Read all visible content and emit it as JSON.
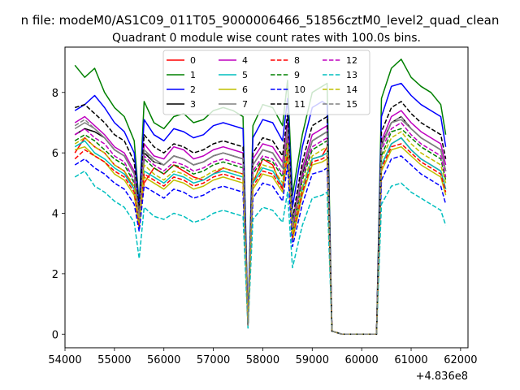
{
  "chart_data": {
    "type": "line",
    "suptitle": "n file: modeM0/AS1C09_011T05_9000006466_51856cztM0_level2_quad_clean",
    "title": "Quadrant 0 module wise count rates with 100.0s bins.",
    "xlabel": "",
    "ylabel": "",
    "x_offset_label": "+4.836e8",
    "xlim": [
      54000,
      62150
    ],
    "ylim": [
      -0.45,
      9.5
    ],
    "x_ticks": [
      54000,
      55000,
      56000,
      57000,
      58000,
      59000,
      60000,
      61000,
      62000
    ],
    "x_tick_labels": [
      "54000",
      "55000",
      "56000",
      "57000",
      "58000",
      "59000",
      "60000",
      "61000",
      "62000"
    ],
    "y_ticks": [
      0,
      2,
      4,
      6,
      8
    ],
    "y_tick_labels": [
      "0",
      "2",
      "4",
      "6",
      "8"
    ],
    "grid": false,
    "legend_position": "upper center",
    "legend_columns": 4,
    "x": [
      54200,
      54400,
      54600,
      54800,
      55000,
      55200,
      55400,
      55500,
      55600,
      55800,
      56000,
      56200,
      56400,
      56600,
      56800,
      57000,
      57200,
      57400,
      57600,
      57700,
      57800,
      58000,
      58200,
      58400,
      58500,
      58600,
      58800,
      59000,
      59200,
      59300,
      59400,
      59600,
      60000,
      60300,
      60400,
      60600,
      60800,
      61000,
      61200,
      61400,
      61600,
      61700
    ],
    "series": [
      {
        "name": "0",
        "color": "#ff0000",
        "dash": "solid",
        "values": [
          6.0,
          6.5,
          6.2,
          6.0,
          5.6,
          5.4,
          4.8,
          3.8,
          5.0,
          5.5,
          5.3,
          5.6,
          5.4,
          5.2,
          5.1,
          5.3,
          5.5,
          5.4,
          5.3,
          0.3,
          5.0,
          5.8,
          5.6,
          4.8,
          6.8,
          3.4,
          4.8,
          5.8,
          5.9,
          6.2,
          0.1,
          0.0,
          0.0,
          0.0,
          5.6,
          6.3,
          6.5,
          6.1,
          5.8,
          5.6,
          5.4,
          4.8
        ]
      },
      {
        "name": "1",
        "color": "#008000",
        "dash": "solid",
        "values": [
          8.9,
          8.5,
          8.8,
          8.0,
          7.5,
          7.2,
          6.4,
          4.3,
          7.7,
          7.0,
          6.8,
          7.2,
          7.3,
          7.0,
          7.1,
          7.4,
          7.5,
          7.4,
          7.2,
          0.4,
          6.9,
          7.6,
          7.5,
          6.9,
          8.4,
          4.6,
          6.6,
          8.0,
          8.2,
          8.3,
          0.1,
          0.0,
          0.0,
          0.0,
          7.8,
          8.8,
          9.1,
          8.5,
          8.2,
          8.0,
          7.6,
          6.6
        ]
      },
      {
        "name": "2",
        "color": "#0000ff",
        "dash": "solid",
        "values": [
          7.4,
          7.6,
          7.9,
          7.5,
          7.0,
          6.7,
          6.0,
          4.2,
          7.1,
          6.6,
          6.4,
          6.8,
          6.7,
          6.5,
          6.6,
          6.9,
          7.0,
          6.9,
          6.8,
          0.4,
          6.5,
          7.1,
          7.0,
          6.4,
          7.8,
          4.2,
          6.2,
          7.5,
          7.7,
          7.6,
          0.1,
          0.0,
          0.0,
          0.0,
          7.2,
          8.2,
          8.3,
          7.9,
          7.6,
          7.4,
          7.2,
          6.2
        ]
      },
      {
        "name": "3",
        "color": "#000000",
        "dash": "solid",
        "values": [
          6.6,
          6.8,
          6.7,
          6.5,
          6.1,
          5.9,
          5.3,
          3.8,
          6.0,
          5.7,
          5.6,
          5.9,
          5.8,
          5.6,
          5.7,
          5.9,
          6.0,
          5.9,
          5.8,
          0.3,
          5.6,
          6.1,
          6.0,
          5.5,
          6.8,
          3.6,
          5.3,
          6.4,
          6.6,
          6.7,
          0.1,
          0.0,
          0.0,
          0.0,
          6.3,
          7.0,
          7.2,
          6.8,
          6.5,
          6.3,
          6.1,
          5.4
        ]
      },
      {
        "name": "4",
        "color": "#bf00bf",
        "dash": "solid",
        "values": [
          7.0,
          7.2,
          6.9,
          6.6,
          6.2,
          6.0,
          5.4,
          3.9,
          6.3,
          5.9,
          5.8,
          6.2,
          6.1,
          5.8,
          5.9,
          6.1,
          6.2,
          6.1,
          6.0,
          0.3,
          5.8,
          6.3,
          6.2,
          5.7,
          7.0,
          3.7,
          5.5,
          6.6,
          6.8,
          6.9,
          0.1,
          0.0,
          0.0,
          0.0,
          6.4,
          7.2,
          7.4,
          7.0,
          6.7,
          6.5,
          6.3,
          5.6
        ]
      },
      {
        "name": "5",
        "color": "#00bfbf",
        "dash": "solid",
        "values": [
          6.2,
          6.4,
          6.0,
          5.8,
          5.5,
          5.3,
          4.8,
          3.6,
          5.4,
          5.2,
          5.0,
          5.3,
          5.2,
          5.0,
          5.1,
          5.3,
          5.4,
          5.3,
          5.2,
          0.3,
          5.0,
          5.5,
          5.4,
          4.9,
          6.1,
          3.2,
          4.8,
          5.8,
          5.9,
          6.0,
          0.1,
          0.0,
          0.0,
          0.0,
          5.6,
          6.3,
          6.5,
          6.1,
          5.8,
          5.6,
          5.4,
          4.8
        ]
      },
      {
        "name": "6",
        "color": "#bfbf00",
        "dash": "solid",
        "values": [
          6.1,
          6.2,
          5.9,
          5.7,
          5.3,
          5.1,
          4.6,
          3.5,
          5.2,
          5.0,
          4.8,
          5.1,
          5.0,
          4.8,
          4.9,
          5.1,
          5.2,
          5.1,
          5.0,
          0.3,
          4.8,
          5.3,
          5.2,
          4.7,
          5.9,
          3.1,
          4.6,
          5.6,
          5.7,
          5.8,
          0.1,
          0.0,
          0.0,
          0.0,
          5.4,
          6.1,
          6.2,
          5.9,
          5.6,
          5.4,
          5.2,
          4.6
        ]
      },
      {
        "name": "7",
        "color": "#808080",
        "dash": "solid",
        "values": [
          6.8,
          7.0,
          6.8,
          6.5,
          6.1,
          5.9,
          5.3,
          3.9,
          6.1,
          5.8,
          5.6,
          5.9,
          5.8,
          5.6,
          5.7,
          5.9,
          6.0,
          5.9,
          5.8,
          0.3,
          5.6,
          6.1,
          6.0,
          5.5,
          6.8,
          3.6,
          5.4,
          6.4,
          6.6,
          6.7,
          0.1,
          0.0,
          0.0,
          0.0,
          6.2,
          7.0,
          7.1,
          6.8,
          6.5,
          6.3,
          6.1,
          5.4
        ]
      },
      {
        "name": "8",
        "color": "#ff0000",
        "dash": "dashed",
        "values": [
          5.8,
          6.1,
          5.9,
          5.7,
          5.4,
          5.2,
          4.7,
          3.6,
          5.3,
          5.1,
          4.9,
          5.2,
          5.1,
          4.9,
          5.0,
          5.2,
          5.3,
          5.2,
          5.1,
          0.3,
          4.9,
          5.4,
          5.3,
          4.8,
          6.0,
          3.2,
          4.7,
          5.7,
          5.8,
          5.9,
          0.1,
          0.0,
          0.0,
          0.0,
          5.5,
          6.2,
          6.3,
          6.0,
          5.7,
          5.5,
          5.3,
          4.7
        ]
      },
      {
        "name": "9",
        "color": "#008000",
        "dash": "dashed",
        "values": [
          6.4,
          6.6,
          6.4,
          6.1,
          5.8,
          5.6,
          5.0,
          3.7,
          5.8,
          5.5,
          5.3,
          5.6,
          5.5,
          5.3,
          5.4,
          5.6,
          5.7,
          5.6,
          5.5,
          0.3,
          5.3,
          5.8,
          5.7,
          5.2,
          6.4,
          3.4,
          5.1,
          6.1,
          6.3,
          6.4,
          0.1,
          0.0,
          0.0,
          0.0,
          5.9,
          6.7,
          6.8,
          6.5,
          6.2,
          6.0,
          5.8,
          5.1
        ]
      },
      {
        "name": "10",
        "color": "#0000ff",
        "dash": "dashed",
        "values": [
          5.6,
          5.8,
          5.5,
          5.3,
          5.0,
          4.8,
          4.3,
          3.4,
          4.9,
          4.7,
          4.5,
          4.8,
          4.7,
          4.5,
          4.6,
          4.8,
          4.9,
          4.8,
          4.7,
          0.3,
          4.5,
          5.0,
          4.9,
          4.4,
          5.6,
          2.9,
          4.3,
          5.3,
          5.4,
          5.5,
          0.1,
          0.0,
          0.0,
          0.0,
          5.1,
          5.8,
          5.9,
          5.6,
          5.3,
          5.1,
          4.9,
          4.3
        ]
      },
      {
        "name": "11",
        "color": "#000000",
        "dash": "dashed",
        "values": [
          7.5,
          7.6,
          7.3,
          7.0,
          6.6,
          6.4,
          5.7,
          4.1,
          6.6,
          6.2,
          6.0,
          6.3,
          6.2,
          6.0,
          6.1,
          6.3,
          6.4,
          6.3,
          6.2,
          0.3,
          6.0,
          6.5,
          6.4,
          5.9,
          7.3,
          3.8,
          5.7,
          6.9,
          7.1,
          7.2,
          0.1,
          0.0,
          0.0,
          0.0,
          6.7,
          7.5,
          7.7,
          7.3,
          7.0,
          6.8,
          6.6,
          5.8
        ]
      },
      {
        "name": "12",
        "color": "#bf00bf",
        "dash": "dashed",
        "values": [
          6.6,
          6.8,
          6.5,
          6.3,
          5.9,
          5.7,
          5.1,
          3.8,
          5.9,
          5.6,
          5.4,
          5.7,
          5.6,
          5.4,
          5.5,
          5.7,
          5.8,
          5.7,
          5.6,
          0.3,
          5.4,
          5.9,
          5.8,
          5.3,
          6.6,
          3.5,
          5.2,
          6.2,
          6.4,
          6.5,
          0.1,
          0.0,
          0.0,
          0.0,
          6.1,
          6.8,
          7.0,
          6.6,
          6.3,
          6.1,
          5.9,
          5.2
        ]
      },
      {
        "name": "13",
        "color": "#00bfbf",
        "dash": "dashed",
        "values": [
          5.2,
          5.4,
          4.9,
          4.7,
          4.4,
          4.2,
          3.7,
          2.5,
          4.2,
          3.9,
          3.8,
          4.0,
          3.9,
          3.7,
          3.8,
          4.0,
          4.1,
          4.0,
          3.9,
          0.2,
          3.8,
          4.2,
          4.1,
          3.7,
          4.7,
          2.2,
          3.6,
          4.5,
          4.6,
          4.7,
          0.1,
          0.0,
          0.0,
          0.0,
          4.3,
          4.9,
          5.0,
          4.7,
          4.5,
          4.3,
          4.1,
          3.6
        ]
      },
      {
        "name": "14",
        "color": "#bfbf00",
        "dash": "dashed",
        "values": [
          6.3,
          6.5,
          6.2,
          6.0,
          5.6,
          5.4,
          4.9,
          3.7,
          5.6,
          5.3,
          5.1,
          5.4,
          5.3,
          5.1,
          5.2,
          5.4,
          5.5,
          5.4,
          5.3,
          0.3,
          5.1,
          5.6,
          5.5,
          5.0,
          6.3,
          3.3,
          4.9,
          5.9,
          6.1,
          6.2,
          0.1,
          0.0,
          0.0,
          0.0,
          5.8,
          6.5,
          6.7,
          6.3,
          6.0,
          5.8,
          5.6,
          5.0
        ]
      },
      {
        "name": "15",
        "color": "#808080",
        "dash": "dashed",
        "values": [
          6.9,
          7.1,
          6.8,
          6.5,
          6.1,
          5.9,
          5.3,
          3.9,
          6.1,
          5.7,
          5.6,
          5.9,
          5.8,
          5.6,
          5.7,
          5.9,
          6.0,
          5.9,
          5.8,
          0.3,
          5.6,
          6.1,
          6.0,
          5.5,
          6.8,
          3.6,
          5.4,
          6.4,
          6.6,
          6.7,
          0.1,
          0.0,
          0.0,
          0.0,
          6.3,
          7.0,
          7.2,
          6.8,
          6.5,
          6.3,
          6.1,
          5.4
        ]
      }
    ]
  }
}
